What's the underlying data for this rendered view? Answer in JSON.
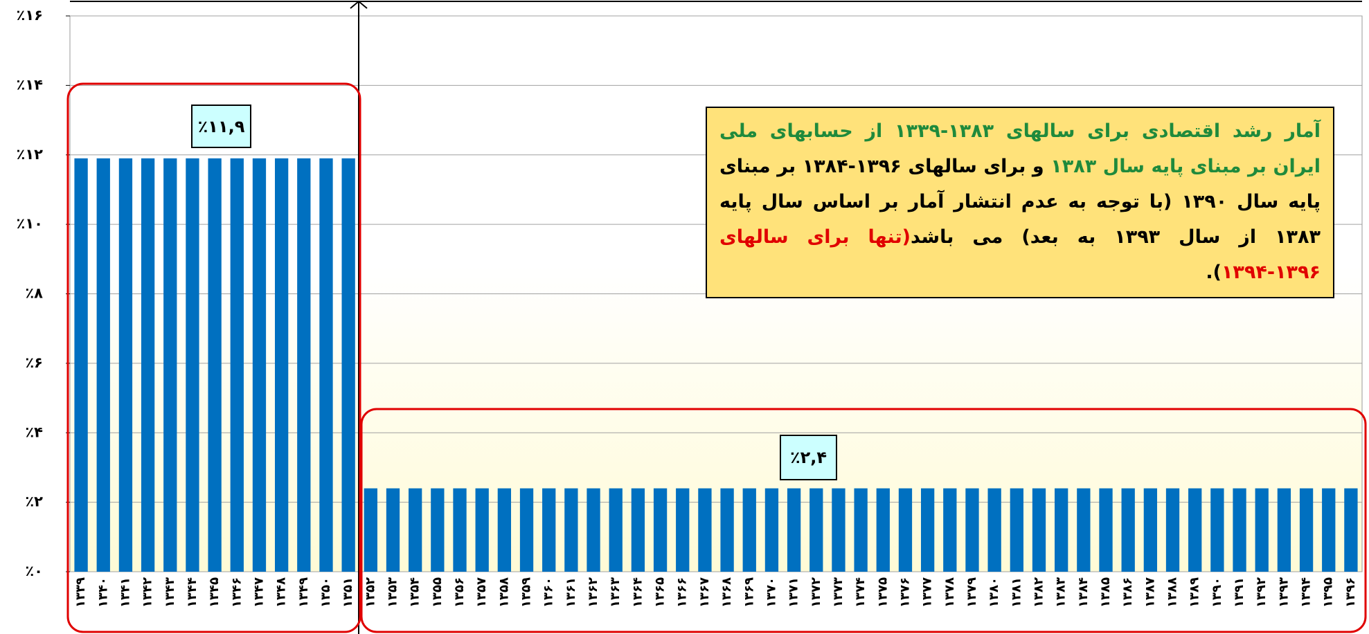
{
  "chart_data": {
    "type": "bar",
    "categories": [
      "۱۳۳۹",
      "۱۳۴۰",
      "۱۳۴۱",
      "۱۳۴۲",
      "۱۳۴۳",
      "۱۳۴۴",
      "۱۳۴۵",
      "۱۳۴۶",
      "۱۳۴۷",
      "۱۳۴۸",
      "۱۳۴۹",
      "۱۳۵۰",
      "۱۳۵۱",
      "۱۳۵۲",
      "۱۳۵۳",
      "۱۳۵۴",
      "۱۳۵۵",
      "۱۳۵۶",
      "۱۳۵۷",
      "۱۳۵۸",
      "۱۳۵۹",
      "۱۳۶۰",
      "۱۳۶۱",
      "۱۳۶۲",
      "۱۳۶۳",
      "۱۳۶۴",
      "۱۳۶۵",
      "۱۳۶۶",
      "۱۳۶۷",
      "۱۳۶۸",
      "۱۳۶۹",
      "۱۳۷۰",
      "۱۳۷۱",
      "۱۳۷۲",
      "۱۳۷۳",
      "۱۳۷۴",
      "۱۳۷۵",
      "۱۳۷۶",
      "۱۳۷۷",
      "۱۳۷۸",
      "۱۳۷۹",
      "۱۳۸۰",
      "۱۳۸۱",
      "۱۳۸۲",
      "۱۳۸۳",
      "۱۳۸۴",
      "۱۳۸۵",
      "۱۳۸۶",
      "۱۳۸۷",
      "۱۳۸۸",
      "۱۳۸۹",
      "۱۳۹۰",
      "۱۳۹۱",
      "۱۳۹۲",
      "۱۳۹۳",
      "۱۳۹۴",
      "۱۳۹۵",
      "۱۳۹۶"
    ],
    "values": [
      11.9,
      11.9,
      11.9,
      11.9,
      11.9,
      11.9,
      11.9,
      11.9,
      11.9,
      11.9,
      11.9,
      11.9,
      11.9,
      2.4,
      2.4,
      2.4,
      2.4,
      2.4,
      2.4,
      2.4,
      2.4,
      2.4,
      2.4,
      2.4,
      2.4,
      2.4,
      2.4,
      2.4,
      2.4,
      2.4,
      2.4,
      2.4,
      2.4,
      2.4,
      2.4,
      2.4,
      2.4,
      2.4,
      2.4,
      2.4,
      2.4,
      2.4,
      2.4,
      2.4,
      2.4,
      2.4,
      2.4,
      2.4,
      2.4,
      2.4,
      2.4,
      2.4,
      2.4,
      2.4,
      2.4,
      2.4,
      2.4,
      2.4
    ],
    "color": "#0070c0",
    "ylim": [
      0,
      16
    ],
    "yticks": [
      {
        "value": 0,
        "label": "٪۰"
      },
      {
        "value": 2,
        "label": "٪۲"
      },
      {
        "value": 4,
        "label": "٪۴"
      },
      {
        "value": 6,
        "label": "٪۶"
      },
      {
        "value": 8,
        "label": "٪۸"
      },
      {
        "value": 10,
        "label": "٪۱۰"
      },
      {
        "value": 12,
        "label": "٪۱۲"
      },
      {
        "value": 14,
        "label": "٪۱۴"
      },
      {
        "value": 16,
        "label": "٪۱۶"
      }
    ],
    "grid": true,
    "annotations": [
      "٪۱۱,۹",
      "٪۲,۴"
    ],
    "note": [
      {
        "text": "آمار رشد اقتصادی برای سالهای ۱۳۸۳-۱۳۳۹ از حسابهای ملی ایران بر مبنای پایه سال ۱۳۸۳",
        "color": "#1f8a3c"
      },
      {
        "text": " و برای سالهای ۱۳۹۶-۱۳۸۴ بر مبنای پایه سال ۱۳۹۰ (با توجه به عدم انتشار آمار بر اساس سال پایه ۱۳۸۳ از سال ۱۳۹۳ به بعد) می باشد",
        "color": "#000000"
      },
      {
        "text": "(تنها برای سالهای ۱۳۹۶-۱۳۹۴",
        "color": "#e00000"
      },
      {
        "text": ").",
        "color": "#000000"
      }
    ]
  }
}
